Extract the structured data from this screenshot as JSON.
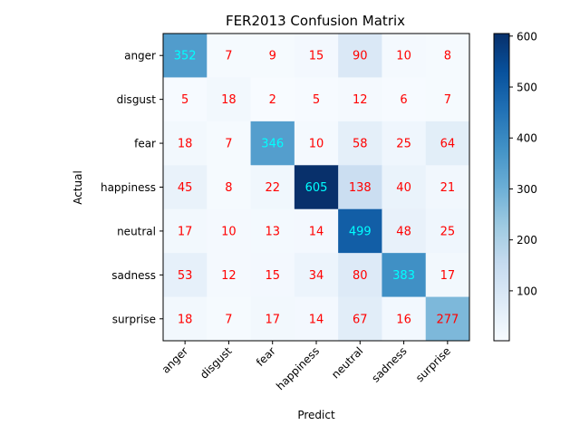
{
  "chart_data": {
    "type": "heatmap",
    "title": "FER2013 Confusion Matrix",
    "xlabel": "Predict",
    "ylabel": "Actual",
    "x_categories": [
      "anger",
      "disgust",
      "fear",
      "happiness",
      "neutral",
      "sadness",
      "surprise"
    ],
    "y_categories": [
      "anger",
      "disgust",
      "fear",
      "happiness",
      "neutral",
      "sadness",
      "surprise"
    ],
    "values": [
      [
        352,
        7,
        9,
        15,
        90,
        10,
        8
      ],
      [
        5,
        18,
        2,
        5,
        12,
        6,
        7
      ],
      [
        18,
        7,
        346,
        10,
        58,
        25,
        64
      ],
      [
        45,
        8,
        22,
        605,
        138,
        40,
        21
      ],
      [
        17,
        10,
        13,
        14,
        499,
        48,
        25
      ],
      [
        53,
        12,
        15,
        34,
        80,
        383,
        17
      ],
      [
        18,
        7,
        17,
        14,
        67,
        16,
        277
      ]
    ],
    "colormap": "Blues",
    "vmin": 2,
    "vmax": 605,
    "colorbar_ticks": [
      100,
      200,
      300,
      400,
      500,
      600
    ],
    "label_colors": {
      "high": "#00ffff",
      "low": "#ff0000"
    },
    "label_threshold": 302.5
  }
}
